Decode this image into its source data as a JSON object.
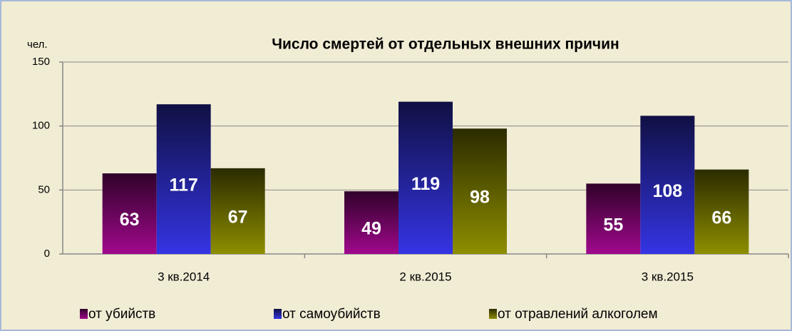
{
  "chart_data": {
    "type": "bar",
    "title": "Число смертей от отдельных внешних причин",
    "y_label": "чел.",
    "categories": [
      "3 кв.2014",
      "2 кв.2015",
      "3 кв.2015"
    ],
    "series": [
      {
        "name": "от убийств",
        "color": "#a0088c",
        "values": [
          63,
          49,
          55
        ]
      },
      {
        "name": "от самоубийств",
        "color": "#3434e4",
        "values": [
          117,
          119,
          108
        ]
      },
      {
        "name": "от отравлений алкоголем",
        "color": "#8e8e00",
        "values": [
          67,
          98,
          66
        ]
      }
    ],
    "ylim": [
      0,
      150
    ],
    "yticks": [
      0,
      50,
      100,
      150
    ],
    "grid": true,
    "legend": "bottom"
  }
}
